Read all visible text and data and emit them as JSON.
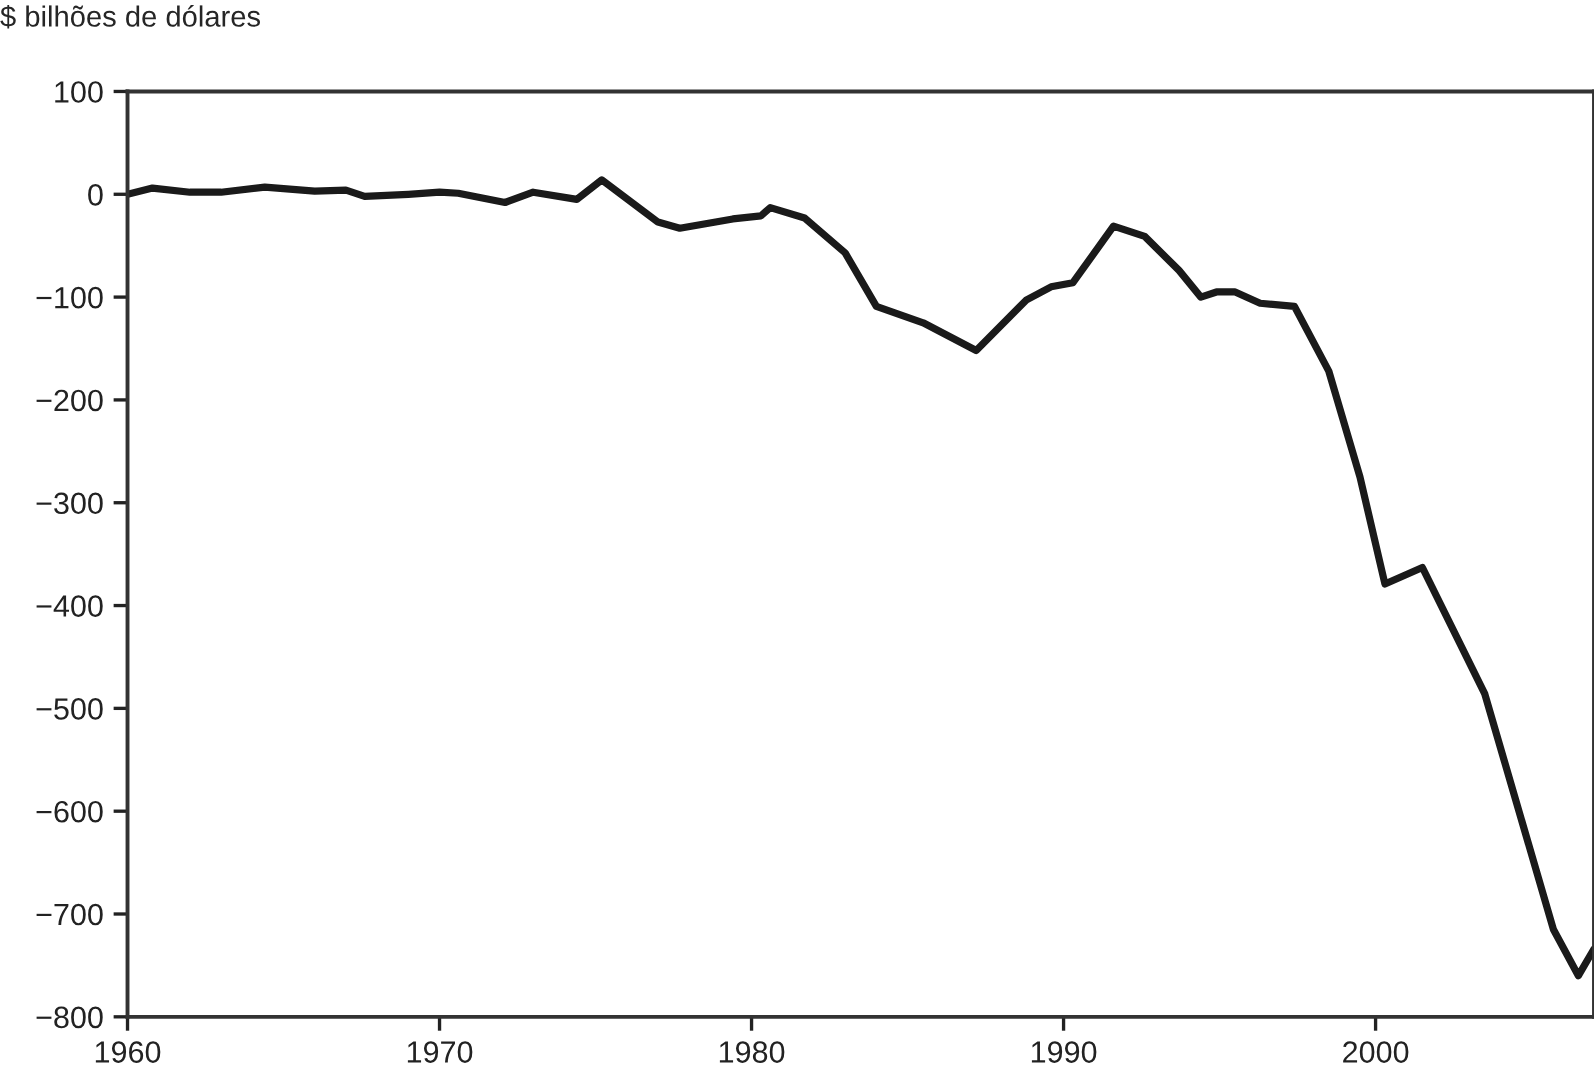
{
  "chart_data": {
    "type": "line",
    "ylabel": "$ bilhões de dólares",
    "xlim": [
      1960,
      2007
    ],
    "xticks": [
      1960,
      1970,
      1980,
      1990,
      2000
    ],
    "ylim": [
      -800,
      100
    ],
    "yticks": [
      {
        "value": 100,
        "label": "100"
      },
      {
        "value": 0,
        "label": "0"
      },
      {
        "value": -100,
        "label": "−100"
      },
      {
        "value": -200,
        "label": "−200"
      },
      {
        "value": -300,
        "label": "−300"
      },
      {
        "value": -400,
        "label": "−400"
      },
      {
        "value": -500,
        "label": "−500"
      },
      {
        "value": -600,
        "label": "−600"
      },
      {
        "value": -700,
        "label": "−700"
      },
      {
        "value": -800,
        "label": "−800"
      }
    ],
    "grid": false,
    "marker": "none",
    "line_style": "solid",
    "series": [
      {
        "color": "#1a1a1a",
        "x": [
          1960,
          1960.8,
          1962,
          1963,
          1964.4,
          1966,
          1967,
          1967.6,
          1969,
          1970,
          1970.6,
          1972.1,
          1973,
          1974.4,
          1975.2,
          1977,
          1977.7,
          1979.4,
          1980.3,
          1980.6,
          1981.7,
          1983,
          1984,
          1985.5,
          1987.2,
          1988.8,
          1989.6,
          1990.3,
          1991.6,
          1992.6,
          1993.7,
          1994.4,
          1994.9,
          1995.5,
          1996.3,
          1997.4,
          1998.5,
          1999.5,
          2000.3,
          2001.5,
          2003.5,
          2005.7,
          2006.5,
          2007
        ],
        "values": [
          0,
          6,
          2,
          2,
          7,
          3,
          4,
          -2,
          0,
          2,
          1,
          -8,
          2,
          -5,
          14,
          -27,
          -33,
          -24,
          -21,
          -13,
          -23,
          -57,
          -109,
          -125,
          -152,
          -103,
          -90,
          -86,
          -31,
          -41,
          -74,
          -100,
          -95,
          -95,
          -106,
          -109,
          -172,
          -275,
          -379,
          -363,
          -486,
          -715,
          -760,
          -734
        ]
      }
    ]
  }
}
